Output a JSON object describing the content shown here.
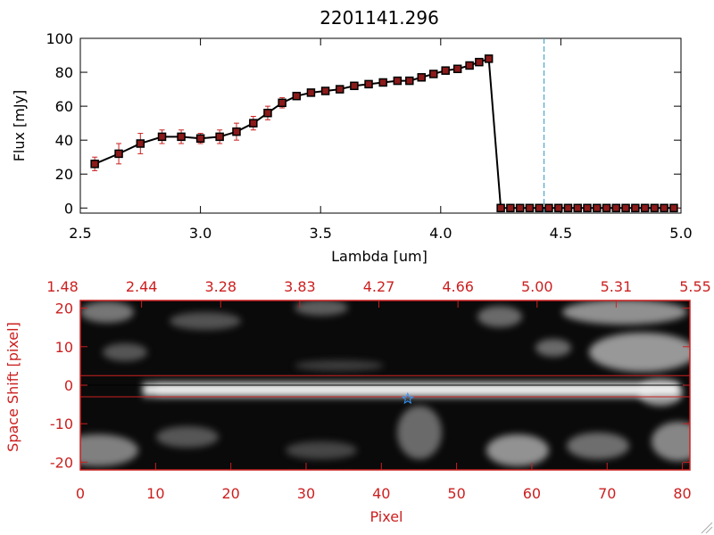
{
  "chart_data": [
    {
      "type": "line",
      "title": "2201141.296",
      "xlabel": "Lambda [um]",
      "ylabel": "Flux [mJy]",
      "xlim": [
        2.5,
        5.0
      ],
      "ylim": [
        -3,
        100
      ],
      "xticks": [
        "2.5",
        "3.0",
        "3.5",
        "4.0",
        "4.5",
        "5.0"
      ],
      "xtick_values": [
        2.5,
        3.0,
        3.5,
        4.0,
        4.5,
        5.0
      ],
      "yticks": [
        "0",
        "20",
        "40",
        "60",
        "80",
        "100"
      ],
      "ytick_values": [
        0,
        20,
        40,
        60,
        80,
        100
      ],
      "series": [
        {
          "x": [
            2.56,
            2.66,
            2.75,
            2.84,
            2.92,
            3.0,
            3.08,
            3.15,
            3.22,
            3.28,
            3.34,
            3.4,
            3.46,
            3.52,
            3.58,
            3.64,
            3.7,
            3.76,
            3.82,
            3.87,
            3.92,
            3.97,
            4.02,
            4.07,
            4.12,
            4.16,
            4.2,
            4.25,
            4.29,
            4.33,
            4.37,
            4.41,
            4.45,
            4.49,
            4.53,
            4.57,
            4.61,
            4.65,
            4.69,
            4.73,
            4.77,
            4.81,
            4.85,
            4.89,
            4.93,
            4.97
          ],
          "y": [
            26,
            32,
            38,
            42,
            42,
            41,
            42,
            45,
            50,
            56,
            62,
            66,
            68,
            69,
            70,
            72,
            73,
            74,
            75,
            75,
            77,
            79,
            81,
            82,
            84,
            86,
            88,
            0,
            0,
            0,
            0,
            0,
            0,
            0,
            0,
            0,
            0,
            0,
            0,
            0,
            0,
            0,
            0,
            0,
            0,
            0
          ],
          "err": [
            4,
            6,
            6,
            4,
            4,
            3,
            4,
            5,
            4,
            4,
            3,
            2,
            2,
            2,
            2,
            2,
            2,
            2,
            2,
            2,
            2,
            2,
            2,
            2,
            2,
            2,
            2,
            0,
            0,
            0,
            0,
            0,
            0,
            0,
            0,
            0,
            0,
            0,
            0,
            0,
            0,
            0,
            0,
            0,
            0,
            0
          ]
        }
      ],
      "vline_x": 4.43,
      "colors": {
        "line": "#000000",
        "marker": "#8b1a1a",
        "errorbar": "#cc2020",
        "vline": "#3399cc",
        "zero_line": "#cc2020"
      }
    },
    {
      "type": "heatmap",
      "xlabel": "Pixel",
      "ylabel": "Space Shift [pixel]",
      "xlim": [
        0,
        81
      ],
      "ylim": [
        -22,
        22
      ],
      "xticks": [
        "0",
        "10",
        "20",
        "30",
        "40",
        "50",
        "60",
        "70",
        "80"
      ],
      "xtick_values": [
        0,
        10,
        20,
        30,
        40,
        50,
        60,
        70,
        80
      ],
      "yticks": [
        "-20",
        "-10",
        "0",
        "10",
        "20"
      ],
      "ytick_values": [
        -20,
        -10,
        0,
        10,
        20
      ],
      "top_ticks": [
        "1.48",
        "2.44",
        "3.28",
        "3.83",
        "4.27",
        "4.66",
        "5.00",
        "5.31",
        "5.55"
      ],
      "trace_hlines": [
        2.5,
        0,
        -3
      ],
      "star_marker": {
        "x": 43.5,
        "y": -3.5
      },
      "colors": {
        "axis": "#cc2020",
        "star": "#3399ff"
      }
    }
  ]
}
